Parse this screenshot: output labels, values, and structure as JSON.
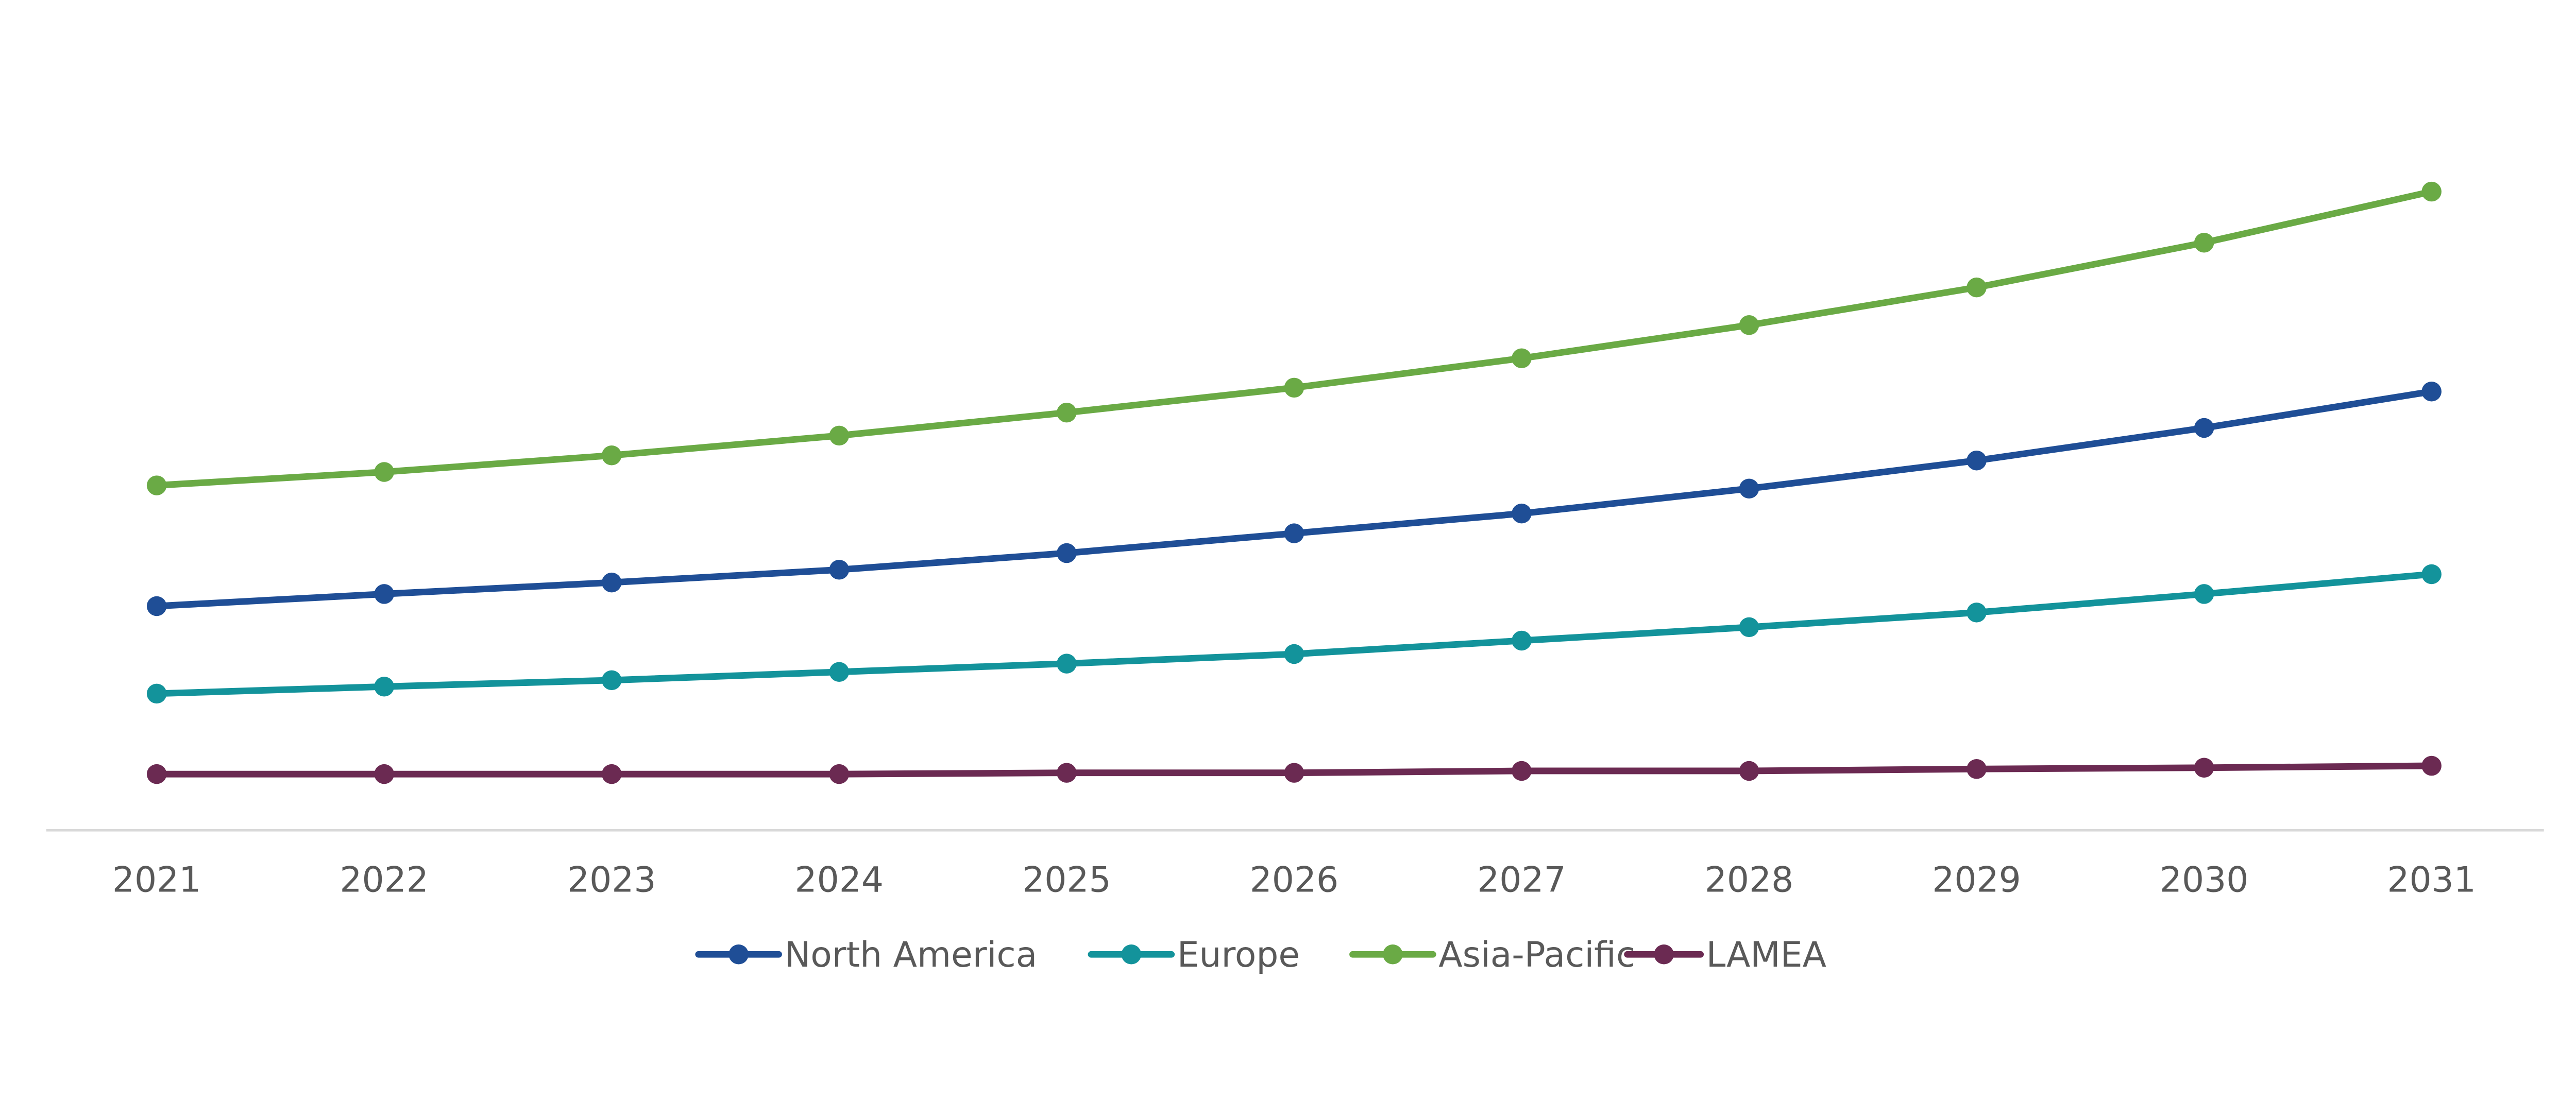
{
  "chart_data": {
    "type": "line",
    "title": "",
    "xlabel": "",
    "ylabel": "",
    "x": [
      "2021",
      "2022",
      "2023",
      "2024",
      "2025",
      "2026",
      "2027",
      "2028",
      "2029",
      "2030",
      "2031"
    ],
    "ylim": [
      0,
      130
    ],
    "y_axis_visible": false,
    "grid": false,
    "legend_position": "bottom",
    "series": [
      {
        "name": "North America",
        "color": "#1f4e96",
        "values": [
          35.1,
          37.0,
          38.8,
          40.8,
          43.4,
          46.5,
          49.6,
          53.5,
          57.9,
          63.0,
          68.7
        ]
      },
      {
        "name": "Europe",
        "color": "#13939b",
        "values": [
          21.4,
          22.5,
          23.5,
          24.8,
          26.1,
          27.6,
          29.7,
          31.8,
          34.1,
          37.0,
          40.1
        ]
      },
      {
        "name": "Asia-Pacific",
        "color": "#6aaa45",
        "values": [
          54.0,
          56.1,
          58.7,
          61.8,
          65.4,
          69.3,
          73.9,
          79.1,
          85.0,
          92.0,
          100.0
        ]
      },
      {
        "name": "LAMEA",
        "color": "#6b2a52",
        "values": [
          8.8,
          8.8,
          8.8,
          8.8,
          9.0,
          9.0,
          9.3,
          9.3,
          9.6,
          9.8,
          10.1
        ]
      }
    ]
  }
}
